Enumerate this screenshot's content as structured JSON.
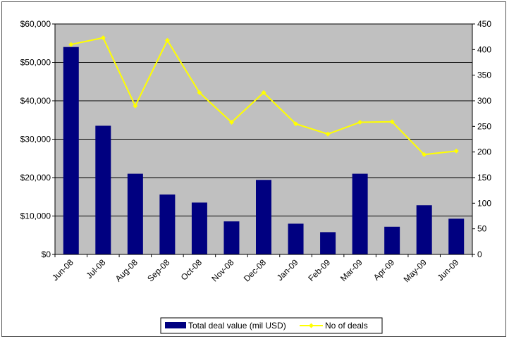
{
  "chart_data": {
    "type": "bar",
    "categories": [
      "Jun-08",
      "Jul-08",
      "Aug-08",
      "Sep-08",
      "Oct-08",
      "Nov-08",
      "Dec-08",
      "Jan-09",
      "Feb-09",
      "Mar-09",
      "Apr-09",
      "May-09",
      "Jun-09"
    ],
    "series": [
      {
        "name": "Total deal value (mil USD)",
        "type": "bar",
        "axis": "left",
        "color": "#000080",
        "values": [
          54000,
          33500,
          21000,
          15600,
          13500,
          8600,
          19400,
          8000,
          5800,
          21000,
          7200,
          12800,
          9300
        ]
      },
      {
        "name": "No of deals",
        "type": "line",
        "axis": "right",
        "color": "#ffff00",
        "values": [
          410,
          423,
          290,
          418,
          316,
          258,
          316,
          255,
          235,
          258,
          259,
          195,
          202
        ]
      }
    ],
    "ylim_left": [
      0,
      60000
    ],
    "yticks_left": [
      "$0",
      "$10,000",
      "$20,000",
      "$30,000",
      "$40,000",
      "$50,000",
      "$60,000"
    ],
    "ylim_right": [
      0,
      450
    ],
    "yticks_right": [
      "0",
      "50",
      "100",
      "150",
      "200",
      "250",
      "300",
      "350",
      "400",
      "450"
    ],
    "plot_background": "#c0c0c0",
    "grid": true,
    "legend_position": "bottom"
  }
}
